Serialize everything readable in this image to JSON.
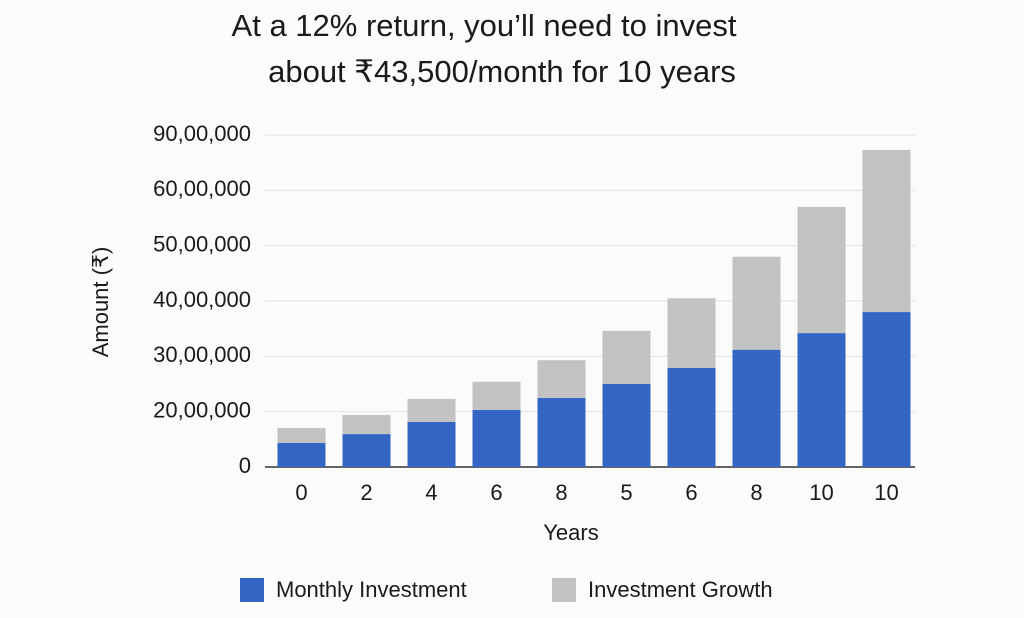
{
  "chart_data": {
    "type": "stacked-bar",
    "title": [
      "At a 12% return, you’ll need to invest",
      "about ₹43,500/month for 10 years"
    ],
    "x_label": "Years",
    "y_label": "Amount (₹)",
    "categories": [
      "0",
      "2",
      "4",
      "6",
      "8",
      "5",
      "6",
      "8",
      "10",
      "10"
    ],
    "series": [
      {
        "name": "Monthly Investment",
        "color": "#3366c4",
        "values": [
          870000,
          1190000,
          1630000,
          2030000,
          2250000,
          2500000,
          2790000,
          3120000,
          3420000,
          3800000
        ]
      },
      {
        "name": "Investment Growth",
        "color": "#c2c2c2",
        "values": [
          540000,
          690000,
          600000,
          510000,
          680000,
          960000,
          1260000,
          1680000,
          2280000,
          4390000
        ]
      }
    ],
    "ylim": [
      0,
      9000000
    ],
    "yticks": [
      0,
      {
        "value": 2000000,
        "label": "20,00,000"
      },
      {
        "value": 3000000,
        "label": "30,00,000"
      },
      {
        "value": 4000000,
        "label": "40,00,000"
      },
      {
        "value": 5000000,
        "label": "50,00,000"
      },
      {
        "value": 6000000,
        "label": "60,00,000"
      },
      {
        "value": 9000000,
        "label": "90,00,000"
      }
    ],
    "grid": true,
    "legend": "bottom"
  }
}
